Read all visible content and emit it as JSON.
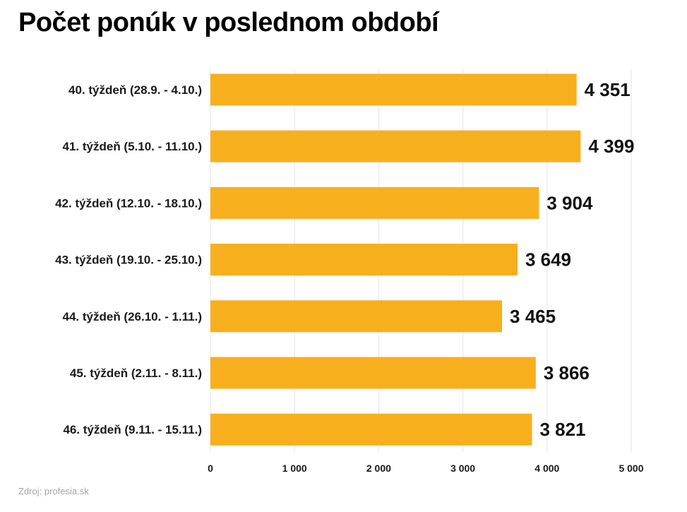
{
  "chart_data": {
    "type": "bar",
    "orientation": "horizontal",
    "title": "Počet ponúk v poslednom období",
    "categories": [
      "40. týždeň (28.9. - 4.10.)",
      "41. týždeň (5.10. - 11.10.)",
      "42. týždeň (12.10. - 18.10.)",
      "43. týždeň (19.10. - 25.10.)",
      "44. týždeň (26.10. - 1.11.)",
      "45. týždeň (2.11. - 8.11.)",
      "46. týždeň (9.11. - 15.11.)"
    ],
    "values": [
      4351,
      4399,
      3904,
      3649,
      3465,
      3866,
      3821
    ],
    "value_labels": [
      "4 351",
      "4 399",
      "3 904",
      "3 649",
      "3 465",
      "3 866",
      "3 821"
    ],
    "xlim": [
      0,
      5000
    ],
    "xticks": [
      0,
      1000,
      2000,
      3000,
      4000,
      5000
    ],
    "xtick_labels": [
      "0",
      "1 000",
      "2 000",
      "3 000",
      "4 000",
      "5 000"
    ],
    "xlabel": "",
    "ylabel": "",
    "grid": "vertical",
    "legend": "none",
    "bar_color": "#F8AF1E"
  },
  "source_note": "Zdroj: profesia.sk"
}
